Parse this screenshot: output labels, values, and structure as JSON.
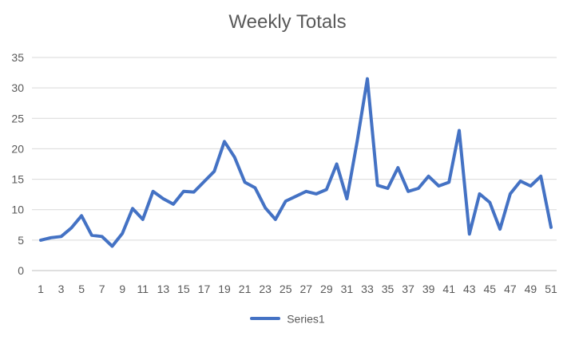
{
  "chart_data": {
    "type": "line",
    "title": "Weekly Totals",
    "xlabel": "",
    "ylabel": "",
    "ylim": [
      0,
      35
    ],
    "yticks": [
      0,
      5,
      10,
      15,
      20,
      25,
      30,
      35
    ],
    "x": [
      1,
      2,
      3,
      4,
      5,
      6,
      7,
      8,
      9,
      10,
      11,
      12,
      13,
      14,
      15,
      16,
      17,
      18,
      19,
      20,
      21,
      22,
      23,
      24,
      25,
      26,
      27,
      28,
      29,
      30,
      31,
      32,
      33,
      34,
      35,
      36,
      37,
      38,
      39,
      40,
      41,
      42,
      43,
      44,
      45,
      46,
      47,
      48,
      49,
      50,
      51
    ],
    "xtick_labels": [
      "1",
      "3",
      "5",
      "7",
      "9",
      "11",
      "13",
      "15",
      "17",
      "19",
      "21",
      "23",
      "25",
      "27",
      "29",
      "31",
      "33",
      "35",
      "37",
      "39",
      "41",
      "43",
      "45",
      "47",
      "49",
      "51"
    ],
    "grid": true,
    "legend_position": "bottom",
    "series": [
      {
        "name": "Series1",
        "color": "#4472C4",
        "values": [
          5.0,
          5.4,
          5.6,
          7.0,
          9.0,
          5.8,
          5.6,
          4.0,
          6.1,
          10.2,
          8.4,
          13.0,
          11.8,
          10.9,
          13.0,
          12.9,
          14.6,
          16.3,
          21.2,
          18.6,
          14.5,
          13.6,
          10.3,
          8.4,
          11.4,
          12.2,
          13.0,
          12.6,
          13.3,
          17.5,
          11.8,
          21.2,
          31.5,
          14.0,
          13.5,
          16.9,
          13.0,
          13.5,
          15.5,
          13.9,
          14.5,
          23.0,
          6.0,
          12.6,
          11.2,
          6.8,
          12.6,
          14.7,
          13.9,
          15.5,
          7.1
        ]
      }
    ]
  }
}
